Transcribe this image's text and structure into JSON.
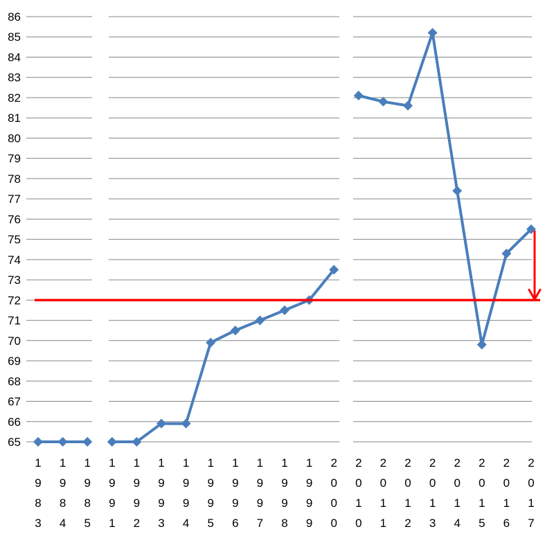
{
  "chart_data": {
    "type": "line",
    "title": "",
    "xlabel": "",
    "ylabel": "",
    "ylim": [
      65,
      86
    ],
    "yticks": [
      65,
      66,
      67,
      68,
      69,
      70,
      71,
      72,
      73,
      74,
      75,
      76,
      77,
      78,
      79,
      80,
      81,
      82,
      83,
      84,
      85,
      86
    ],
    "grid": true,
    "legend": "none",
    "categories": [
      "1983",
      "1984",
      "1985",
      "1991",
      "1992",
      "1993",
      "1994",
      "1995",
      "1996",
      "1997",
      "1998",
      "1999",
      "2000",
      "2010",
      "2011",
      "2012",
      "2013",
      "2014",
      "2015",
      "2016",
      "2017"
    ],
    "segments": [
      [
        0,
        2
      ],
      [
        3,
        12
      ],
      [
        13,
        20
      ]
    ],
    "series": [
      {
        "values": [
          65,
          65,
          65,
          65,
          65,
          65.9,
          65.9,
          69.9,
          70.5,
          71,
          71.5,
          72,
          73.5,
          82.1,
          81.8,
          81.6,
          85.2,
          77.4,
          69.8,
          74.3,
          75.5
        ],
        "color": "#4A7EBB",
        "marker": "diamond"
      }
    ],
    "annotations": [
      {
        "type": "hline",
        "y": 72,
        "color": "#FF0000"
      },
      {
        "type": "arrow",
        "category": "2017",
        "from": 75.5,
        "to": 72,
        "color": "#FF0000"
      }
    ]
  }
}
